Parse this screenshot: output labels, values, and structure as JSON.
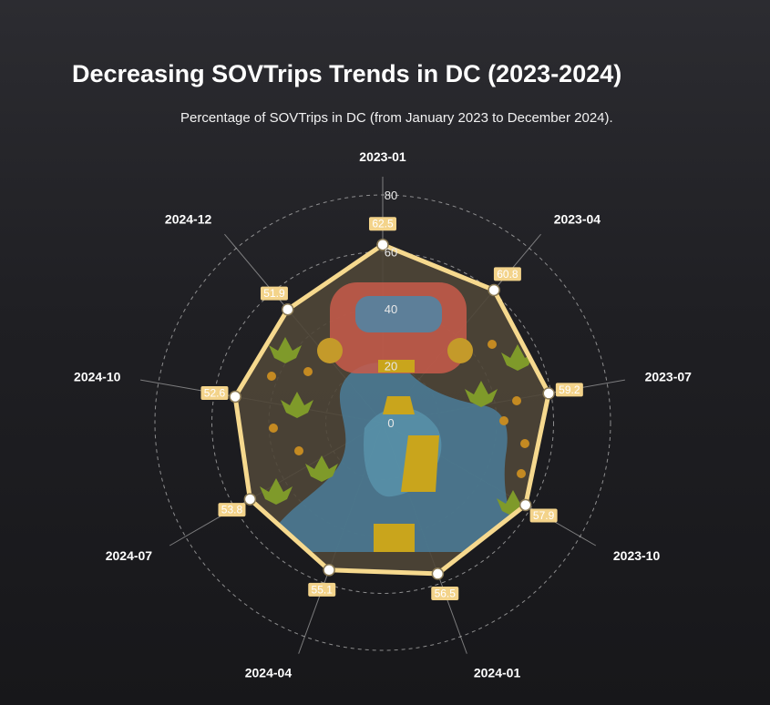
{
  "title": "Decreasing SOVTrips Trends in DC (2023-2024)",
  "subtitle": "Percentage of SOVTrips in DC (from January 2023 to December 2024).",
  "colors": {
    "line": "#f6d98e",
    "fill": "#4f4637",
    "label_box": "#f3d38a",
    "grid": "#bdbdbd",
    "axis_label": "#ffffff"
  },
  "chart_data": {
    "type": "radar",
    "title": "Decreasing SOVTrips Trends in DC (2023-2024)",
    "subtitle": "Percentage of SOVTrips in DC (from January 2023 to December 2024).",
    "categories": [
      "2023-01",
      "2023-04",
      "2023-07",
      "2023-10",
      "2024-01",
      "2024-04",
      "2024-07",
      "2024-10",
      "2024-12"
    ],
    "values": [
      62.5,
      60.8,
      59.2,
      57.9,
      56.5,
      55.1,
      53.8,
      52.6,
      51.9
    ],
    "value_labels": [
      "62.5",
      "60.8",
      "59.2",
      "57.9",
      "56.5",
      "55.1",
      "53.8",
      "52.6",
      "51.9"
    ],
    "radial_ticks": [
      "0",
      "20",
      "40",
      "60",
      "80"
    ],
    "radial_range": [
      0,
      80
    ],
    "grid": true
  }
}
